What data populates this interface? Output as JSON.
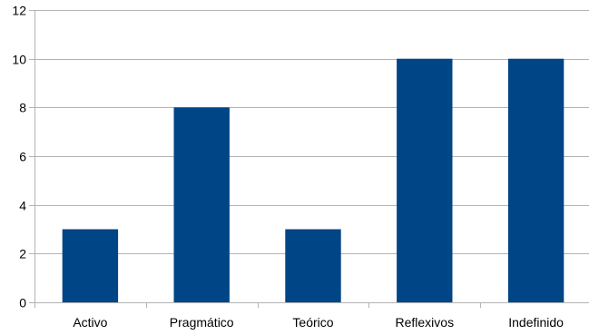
{
  "chart_data": {
    "type": "bar",
    "categories": [
      "Activo",
      "Pragmático",
      "Teórico",
      "Reflexivos",
      "Indefinido"
    ],
    "values": [
      3,
      8,
      3,
      10,
      10
    ],
    "ylim": [
      0,
      12
    ],
    "yticks": [
      0,
      2,
      4,
      6,
      8,
      10,
      12
    ],
    "title": "",
    "xlabel": "",
    "ylabel": "",
    "grid": true,
    "legend": "none",
    "bar_color": "#004586"
  }
}
